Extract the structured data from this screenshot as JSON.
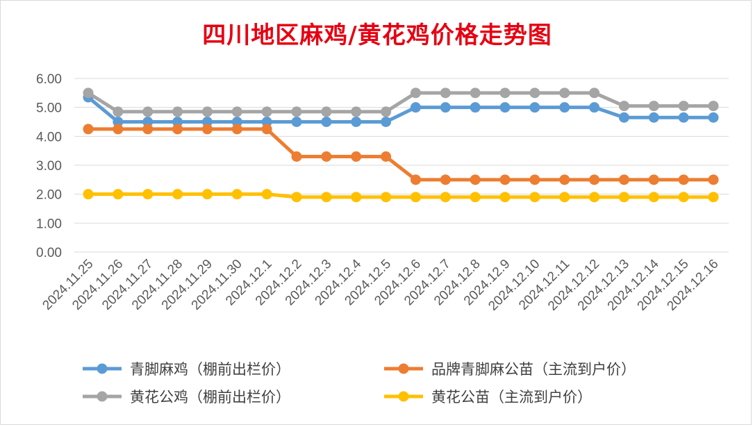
{
  "chart_data": {
    "type": "line",
    "title": "四川地区麻鸡/黄花鸡价格走势图",
    "xlabel": "",
    "ylabel": "",
    "ylim": [
      0,
      6
    ],
    "yticks": [
      "0.00",
      "1.00",
      "2.00",
      "3.00",
      "4.00",
      "5.00",
      "6.00"
    ],
    "grid": true,
    "legend_position": "bottom",
    "categories": [
      "2024.11.25",
      "2024.11.26",
      "2024.11.27",
      "2024.11.28",
      "2024.11.29",
      "2024.11.30",
      "2024.12.1",
      "2024.12.2",
      "2024.12.3",
      "2024.12.4",
      "2024.12.5",
      "2024.12.6",
      "2024.12.7",
      "2024.12.8",
      "2024.12.9",
      "2024.12.10",
      "2024.12.11",
      "2024.12.12",
      "2024.12.13",
      "2024.12.14",
      "2024.12.15",
      "2024.12.16"
    ],
    "series": [
      {
        "name": "青脚麻鸡（棚前出栏价）",
        "color": "#5b9bd5",
        "values": [
          5.35,
          4.5,
          4.5,
          4.5,
          4.5,
          4.5,
          4.5,
          4.5,
          4.5,
          4.5,
          4.5,
          5.0,
          5.0,
          5.0,
          5.0,
          5.0,
          5.0,
          5.0,
          4.65,
          4.65,
          4.65,
          4.65
        ]
      },
      {
        "name": "品牌青脚麻公苗（主流到户价）",
        "color": "#ed7d31",
        "values": [
          4.25,
          4.25,
          4.25,
          4.25,
          4.25,
          4.25,
          4.25,
          3.3,
          3.3,
          3.3,
          3.3,
          2.5,
          2.5,
          2.5,
          2.5,
          2.5,
          2.5,
          2.5,
          2.5,
          2.5,
          2.5,
          2.5
        ]
      },
      {
        "name": "黄花公鸡（棚前出栏价）",
        "color": "#a5a5a5",
        "values": [
          5.5,
          4.85,
          4.85,
          4.85,
          4.85,
          4.85,
          4.85,
          4.85,
          4.85,
          4.85,
          4.85,
          5.5,
          5.5,
          5.5,
          5.5,
          5.5,
          5.5,
          5.5,
          5.05,
          5.05,
          5.05,
          5.05
        ]
      },
      {
        "name": "黄花公苗（主流到户价）",
        "color": "#ffc000",
        "values": [
          2.0,
          2.0,
          2.0,
          2.0,
          2.0,
          2.0,
          2.0,
          1.9,
          1.9,
          1.9,
          1.9,
          1.9,
          1.9,
          1.9,
          1.9,
          1.9,
          1.9,
          1.9,
          1.9,
          1.9,
          1.9,
          1.9
        ]
      }
    ]
  }
}
